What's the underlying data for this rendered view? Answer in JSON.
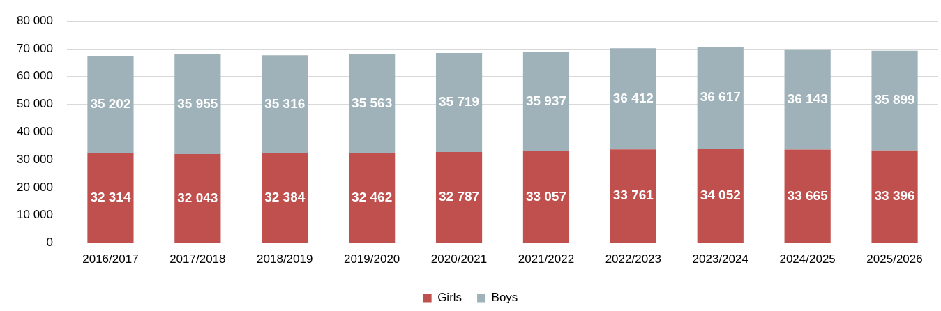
{
  "chart_data": {
    "type": "bar",
    "stacked": true,
    "categories": [
      "2016/2017",
      "2017/2018",
      "2018/2019",
      "2019/2020",
      "2020/2021",
      "2021/2022",
      "2022/2023",
      "2023/2024",
      "2024/2025",
      "2025/2026"
    ],
    "series": [
      {
        "name": "Girls",
        "color": "#c0504d",
        "values": [
          32314,
          32043,
          32384,
          32462,
          32787,
          33057,
          33761,
          34052,
          33665,
          33396
        ],
        "value_labels": [
          "32 314",
          "32 043",
          "32 384",
          "32 462",
          "32 787",
          "33 057",
          "33 761",
          "34 052",
          "33 665",
          "33 396"
        ]
      },
      {
        "name": "Boys",
        "color": "#9fb2b9",
        "values": [
          35202,
          35955,
          35316,
          35563,
          35719,
          35937,
          36412,
          36617,
          36143,
          35899
        ],
        "value_labels": [
          "35 202",
          "35 955",
          "35 316",
          "35 563",
          "35 719",
          "35 937",
          "36 412",
          "36 617",
          "36 143",
          "35 899"
        ]
      }
    ],
    "ylim": [
      0,
      80000
    ],
    "yticks": [
      {
        "value": 0,
        "label": "0"
      },
      {
        "value": 10000,
        "label": "10 000"
      },
      {
        "value": 20000,
        "label": "20 000"
      },
      {
        "value": 30000,
        "label": "30 000"
      },
      {
        "value": 40000,
        "label": "40 000"
      },
      {
        "value": 50000,
        "label": "50 000"
      },
      {
        "value": 60000,
        "label": "60 000"
      },
      {
        "value": 70000,
        "label": "70 000"
      },
      {
        "value": 80000,
        "label": "80 000"
      }
    ],
    "grid": "y",
    "legend": "bottom"
  }
}
